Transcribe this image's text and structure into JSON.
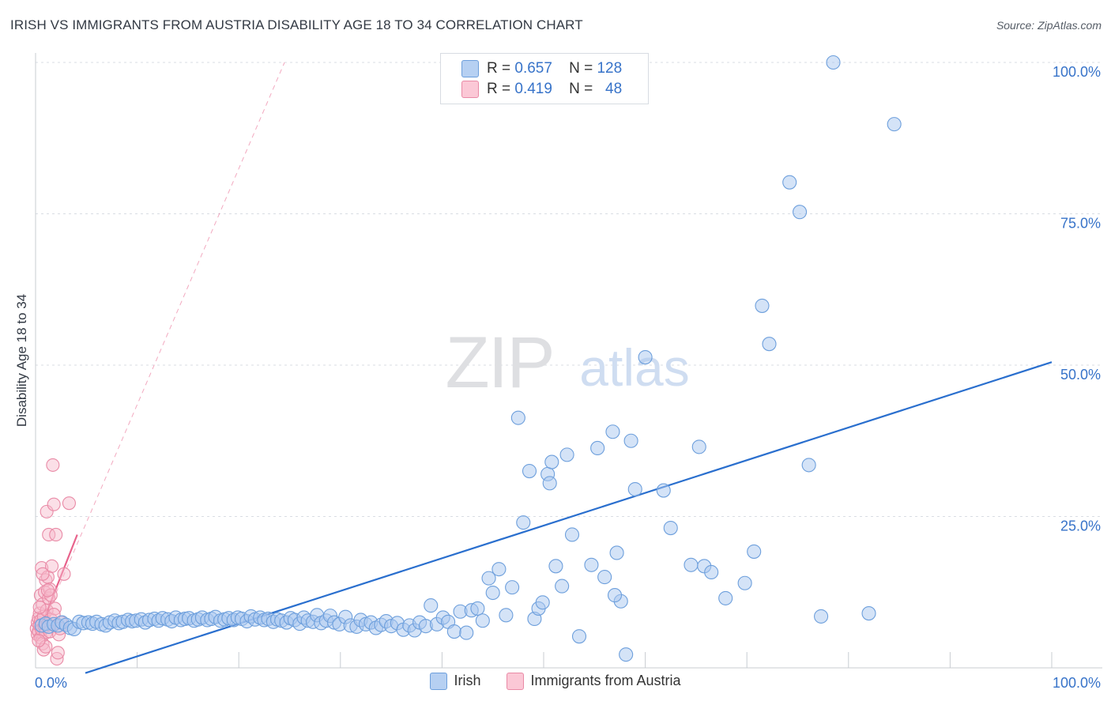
{
  "header": {
    "title": "IRISH VS IMMIGRANTS FROM AUSTRIA DISABILITY AGE 18 TO 34 CORRELATION CHART",
    "source": "Source: ZipAtlas.com"
  },
  "watermark": {
    "zip": "ZIP",
    "atlas": "atlas"
  },
  "legend": {
    "rows": [
      {
        "r_label": "R =",
        "r_value": "0.657",
        "n_label": "N =",
        "n_value": "128"
      },
      {
        "r_label": "R =",
        "r_value": "0.419",
        "n_label": "N =",
        "n_value": "48"
      }
    ]
  },
  "bottom_legend": {
    "series1": "Irish",
    "series2": "Immigrants from Austria"
  },
  "colors": {
    "irish_fill": "#a9c8ef",
    "irish_stroke": "#6d9fdc",
    "irish_line": "#2a6fce",
    "austria_fill": "#f6b8ca",
    "austria_stroke": "#e98aa6",
    "austria_line": "#e8638c",
    "axis_label": "#3773c9",
    "grid": "#d9dde3"
  },
  "chart_data": {
    "type": "scatter",
    "title": "IRISH VS IMMIGRANTS FROM AUSTRIA DISABILITY AGE 18 TO 34 CORRELATION CHART",
    "xlabel": "",
    "ylabel": "Disability Age 18 to 34",
    "xlim": [
      0,
      100
    ],
    "ylim": [
      0,
      100
    ],
    "x_tick_labels": [
      "0.0%",
      "100.0%"
    ],
    "y_tick_labels": [
      "25.0%",
      "50.0%",
      "75.0%",
      "100.0%"
    ],
    "y_ticks": [
      25,
      50,
      75,
      100
    ],
    "grid": true,
    "legend_position": "top-center",
    "series": [
      {
        "name": "Irish",
        "r": 0.657,
        "n": 128,
        "trend": {
          "x": [
            0,
            100
          ],
          "y": [
            -3.5,
            50.5
          ]
        },
        "points": [
          [
            0.6,
            7.0
          ],
          [
            1.0,
            7.3
          ],
          [
            1.3,
            6.8
          ],
          [
            1.8,
            7.2
          ],
          [
            2.2,
            7.0
          ],
          [
            2.6,
            7.5
          ],
          [
            3.0,
            7.1
          ],
          [
            3.4,
            6.6
          ],
          [
            3.8,
            6.4
          ],
          [
            4.3,
            7.6
          ],
          [
            4.7,
            7.4
          ],
          [
            5.2,
            7.5
          ],
          [
            5.6,
            7.3
          ],
          [
            6.0,
            7.6
          ],
          [
            6.5,
            7.2
          ],
          [
            6.9,
            7.0
          ],
          [
            7.3,
            7.5
          ],
          [
            7.8,
            7.8
          ],
          [
            8.2,
            7.4
          ],
          [
            8.6,
            7.6
          ],
          [
            9.1,
            7.9
          ],
          [
            9.5,
            7.7
          ],
          [
            9.9,
            7.8
          ],
          [
            10.4,
            8.0
          ],
          [
            10.8,
            7.5
          ],
          [
            11.2,
            7.9
          ],
          [
            11.7,
            8.1
          ],
          [
            12.1,
            7.8
          ],
          [
            12.5,
            8.2
          ],
          [
            13.0,
            8.0
          ],
          [
            13.4,
            7.7
          ],
          [
            13.8,
            8.3
          ],
          [
            14.3,
            7.9
          ],
          [
            14.7,
            8.1
          ],
          [
            15.1,
            8.2
          ],
          [
            15.6,
            7.8
          ],
          [
            16.0,
            8.0
          ],
          [
            16.4,
            8.3
          ],
          [
            16.9,
            7.9
          ],
          [
            17.3,
            8.1
          ],
          [
            17.7,
            8.4
          ],
          [
            18.2,
            7.8
          ],
          [
            18.6,
            8.0
          ],
          [
            19.0,
            8.2
          ],
          [
            19.5,
            7.9
          ],
          [
            19.9,
            8.3
          ],
          [
            20.3,
            8.1
          ],
          [
            20.8,
            7.7
          ],
          [
            21.2,
            8.5
          ],
          [
            21.6,
            8.0
          ],
          [
            22.1,
            8.3
          ],
          [
            22.5,
            7.9
          ],
          [
            22.9,
            8.1
          ],
          [
            23.4,
            7.6
          ],
          [
            23.8,
            8.0
          ],
          [
            24.2,
            7.8
          ],
          [
            24.7,
            7.5
          ],
          [
            25.1,
            8.2
          ],
          [
            25.5,
            7.9
          ],
          [
            26.0,
            7.3
          ],
          [
            26.4,
            8.3
          ],
          [
            26.8,
            7.8
          ],
          [
            27.3,
            7.6
          ],
          [
            27.7,
            8.7
          ],
          [
            28.1,
            7.4
          ],
          [
            28.6,
            7.8
          ],
          [
            29.0,
            8.6
          ],
          [
            29.4,
            7.5
          ],
          [
            29.9,
            7.2
          ],
          [
            30.5,
            8.4
          ],
          [
            31.0,
            7.0
          ],
          [
            31.6,
            6.8
          ],
          [
            32.0,
            7.9
          ],
          [
            32.5,
            7.2
          ],
          [
            33.0,
            7.5
          ],
          [
            33.5,
            6.6
          ],
          [
            34.0,
            7.1
          ],
          [
            34.5,
            7.7
          ],
          [
            35.0,
            6.9
          ],
          [
            35.6,
            7.4
          ],
          [
            36.2,
            6.3
          ],
          [
            36.8,
            7.0
          ],
          [
            37.3,
            6.2
          ],
          [
            37.8,
            7.5
          ],
          [
            38.4,
            6.9
          ],
          [
            38.9,
            10.3
          ],
          [
            39.5,
            7.2
          ],
          [
            40.1,
            8.3
          ],
          [
            40.6,
            7.6
          ],
          [
            41.2,
            6.0
          ],
          [
            41.8,
            9.3
          ],
          [
            42.4,
            5.8
          ],
          [
            42.9,
            9.5
          ],
          [
            43.5,
            9.8
          ],
          [
            44.0,
            7.8
          ],
          [
            44.6,
            14.8
          ],
          [
            45.0,
            12.4
          ],
          [
            45.6,
            16.3
          ],
          [
            46.3,
            8.7
          ],
          [
            46.9,
            13.3
          ],
          [
            47.5,
            41.3
          ],
          [
            48.0,
            24.0
          ],
          [
            48.6,
            32.5
          ],
          [
            49.1,
            8.1
          ],
          [
            49.5,
            9.8
          ],
          [
            49.9,
            10.8
          ],
          [
            50.4,
            32.0
          ],
          [
            50.6,
            30.5
          ],
          [
            50.8,
            34.0
          ],
          [
            51.2,
            16.8
          ],
          [
            51.8,
            13.5
          ],
          [
            52.3,
            35.2
          ],
          [
            52.8,
            22.0
          ],
          [
            53.5,
            5.2
          ],
          [
            54.7,
            17.0
          ],
          [
            55.3,
            36.3
          ],
          [
            56.0,
            15.0
          ],
          [
            56.8,
            39.0
          ],
          [
            57.2,
            19.0
          ],
          [
            57.6,
            11.0
          ],
          [
            58.1,
            2.2
          ],
          [
            58.6,
            37.5
          ],
          [
            59.0,
            29.5
          ],
          [
            60.0,
            51.3
          ],
          [
            61.8,
            29.3
          ],
          [
            62.5,
            23.1
          ],
          [
            65.3,
            36.5
          ],
          [
            65.8,
            16.8
          ],
          [
            66.5,
            15.8
          ],
          [
            67.9,
            11.5
          ],
          [
            69.8,
            14.0
          ],
          [
            70.7,
            19.2
          ],
          [
            71.5,
            59.8
          ],
          [
            72.2,
            53.5
          ],
          [
            74.2,
            80.2
          ],
          [
            75.2,
            75.3
          ],
          [
            76.1,
            33.5
          ],
          [
            77.3,
            8.5
          ],
          [
            78.5,
            100.0
          ],
          [
            82.0,
            9.0
          ],
          [
            84.5,
            89.8
          ],
          [
            57.0,
            12.0
          ],
          [
            64.5,
            17.0
          ]
        ]
      },
      {
        "name": "Immigrants from Austria",
        "r": 0.419,
        "n": 48,
        "trend": {
          "x": [
            0,
            4.1
          ],
          "y": [
            4.5,
            22.0
          ]
        },
        "trend_extended": {
          "x": [
            0,
            24.5
          ],
          "y": [
            4.5,
            100
          ]
        },
        "points": [
          [
            0.1,
            6.5
          ],
          [
            0.2,
            7.5
          ],
          [
            0.2,
            5.5
          ],
          [
            0.3,
            8.2
          ],
          [
            0.3,
            6.0
          ],
          [
            0.4,
            7.0
          ],
          [
            0.4,
            9.0
          ],
          [
            0.5,
            5.0
          ],
          [
            0.5,
            12.0
          ],
          [
            0.5,
            7.8
          ],
          [
            0.6,
            16.5
          ],
          [
            0.6,
            6.3
          ],
          [
            0.7,
            10.5
          ],
          [
            0.7,
            4.0
          ],
          [
            0.8,
            8.5
          ],
          [
            0.8,
            3.0
          ],
          [
            0.9,
            12.5
          ],
          [
            0.9,
            6.8
          ],
          [
            1.0,
            14.5
          ],
          [
            1.0,
            5.8
          ],
          [
            1.1,
            9.5
          ],
          [
            1.1,
            25.8
          ],
          [
            1.2,
            15.0
          ],
          [
            1.2,
            7.2
          ],
          [
            1.3,
            22.0
          ],
          [
            1.3,
            11.5
          ],
          [
            1.4,
            13.0
          ],
          [
            1.4,
            6.0
          ],
          [
            1.5,
            12.0
          ],
          [
            1.5,
            8.0
          ],
          [
            1.6,
            16.8
          ],
          [
            1.7,
            33.5
          ],
          [
            1.8,
            27.0
          ],
          [
            1.9,
            9.8
          ],
          [
            2.0,
            22.0
          ],
          [
            2.1,
            1.5
          ],
          [
            2.2,
            2.5
          ],
          [
            2.3,
            5.5
          ],
          [
            2.5,
            7.5
          ],
          [
            2.8,
            15.5
          ],
          [
            3.3,
            27.2
          ],
          [
            0.4,
            10.0
          ],
          [
            0.7,
            15.5
          ],
          [
            1.0,
            3.5
          ],
          [
            1.8,
            8.8
          ],
          [
            0.3,
            4.5
          ],
          [
            1.2,
            12.8
          ],
          [
            2.4,
            6.5
          ]
        ]
      }
    ]
  }
}
